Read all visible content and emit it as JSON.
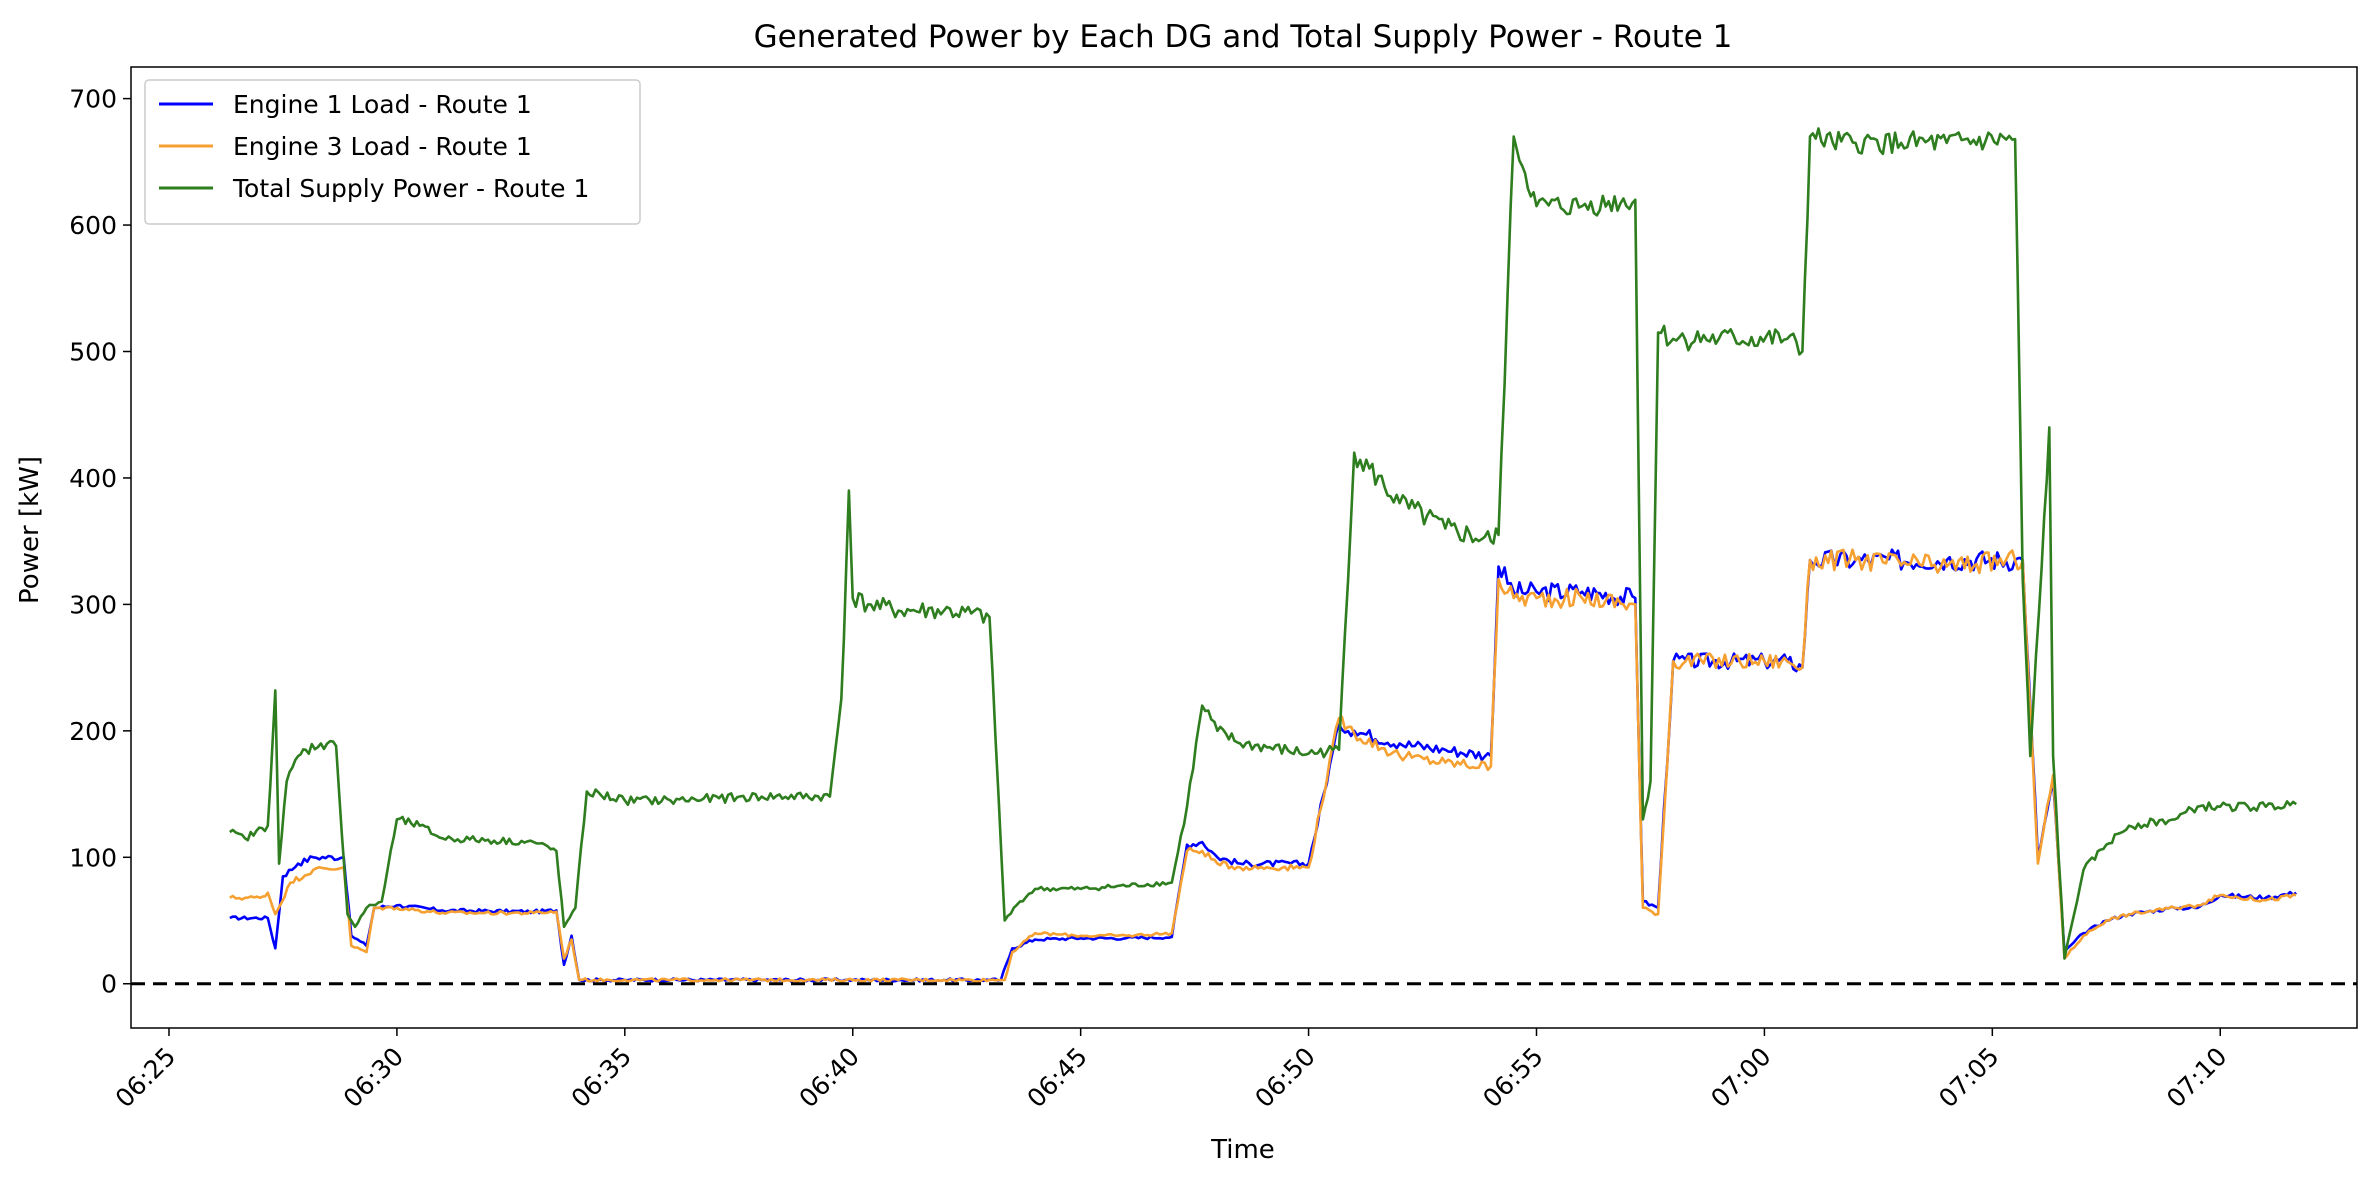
{
  "chart_data": {
    "type": "line",
    "title": "Generated Power by Each DG and Total Supply Power - Route 1",
    "xlabel": "Time",
    "ylabel": "Power [kW]",
    "x_ticks": [
      "06:25",
      "06:30",
      "06:35",
      "06:40",
      "06:45",
      "06:50",
      "06:55",
      "07:00",
      "07:05",
      "07:10"
    ],
    "y_ticks": [
      "0",
      "100",
      "200",
      "300",
      "400",
      "500",
      "600",
      "700"
    ],
    "xlim": [
      "06:24:10",
      "07:13:00"
    ],
    "ylim": [
      -35,
      725
    ],
    "grid": false,
    "legend_position": "top-left",
    "reference_line": {
      "y": 0,
      "style": "dashed",
      "color": "#000000"
    },
    "series": [
      {
        "name": "Engine 1 Load - Route 1",
        "color": "#0000ff",
        "x": [
          "06:26:20",
          "06:27:10",
          "06:27:20",
          "06:27:30",
          "06:27:50",
          "06:28:10",
          "06:28:50",
          "06:29:00",
          "06:29:20",
          "06:29:30",
          "06:30:00",
          "06:31:00",
          "06:33:00",
          "06:33:30",
          "06:33:40",
          "06:33:50",
          "06:34:00",
          "06:34:30",
          "06:35:00",
          "06:36:00",
          "06:38:00",
          "06:39:30",
          "06:39:50",
          "06:40:00",
          "06:40:20",
          "06:41:00",
          "06:42:00",
          "06:43:00",
          "06:43:15",
          "06:43:30",
          "06:44:00",
          "06:45:00",
          "06:46:00",
          "06:47:00",
          "06:47:20",
          "06:47:40",
          "06:48:00",
          "06:48:30",
          "06:50:00",
          "06:50:40",
          "06:51:00",
          "06:52:00",
          "06:53:00",
          "06:54:00",
          "06:54:10",
          "06:54:30",
          "06:55:00",
          "06:56:00",
          "06:57:10",
          "06:57:20",
          "06:57:40",
          "06:58:00",
          "07:00:00",
          "07:00:30",
          "07:00:50",
          "07:01:00",
          "07:02:00",
          "07:04:00",
          "07:05:30",
          "07:05:40",
          "07:06:00",
          "07:06:20",
          "07:06:35",
          "07:07:00",
          "07:07:30",
          "07:08:00",
          "07:09:00",
          "07:09:30",
          "07:10:00",
          "07:11:00",
          "07:11:40"
        ],
        "y": [
          52,
          52,
          28,
          85,
          95,
          100,
          100,
          38,
          30,
          60,
          62,
          58,
          57,
          58,
          15,
          38,
          3,
          3,
          3,
          3,
          3,
          3,
          3,
          3,
          3,
          3,
          3,
          3,
          3,
          28,
          35,
          36,
          36,
          37,
          110,
          112,
          100,
          95,
          95,
          205,
          200,
          190,
          185,
          180,
          330,
          310,
          310,
          310,
          305,
          65,
          60,
          255,
          255,
          255,
          250,
          335,
          335,
          335,
          335,
          335,
          100,
          160,
          25,
          40,
          50,
          55,
          60,
          60,
          70,
          68,
          72
        ]
      },
      {
        "name": "Engine 3 Load - Route 1",
        "color": "#f5a030",
        "x": [
          "06:26:20",
          "06:27:00",
          "06:27:10",
          "06:27:20",
          "06:27:40",
          "06:28:10",
          "06:28:50",
          "06:29:00",
          "06:29:20",
          "06:29:30",
          "06:30:00",
          "06:31:00",
          "06:33:00",
          "06:33:30",
          "06:33:40",
          "06:33:50",
          "06:34:00",
          "06:35:00",
          "06:36:00",
          "06:37:00",
          "06:38:00",
          "06:39:00",
          "06:40:00",
          "06:41:00",
          "06:42:00",
          "06:43:00",
          "06:43:20",
          "06:43:30",
          "06:44:00",
          "06:45:00",
          "06:46:00",
          "06:47:00",
          "06:47:20",
          "06:47:40",
          "06:48:00",
          "06:48:30",
          "06:50:00",
          "06:50:40",
          "06:51:00",
          "06:52:00",
          "06:53:00",
          "06:54:00",
          "06:54:10",
          "06:54:30",
          "06:55:00",
          "06:56:00",
          "06:57:10",
          "06:57:20",
          "06:57:40",
          "06:58:00",
          "07:00:00",
          "07:00:30",
          "07:00:50",
          "07:01:00",
          "07:02:00",
          "07:04:00",
          "07:05:30",
          "07:05:40",
          "07:06:00",
          "07:06:20",
          "07:06:35",
          "07:07:00",
          "07:07:30",
          "07:08:00",
          "07:09:00",
          "07:09:30",
          "07:10:00",
          "07:11:00",
          "07:11:40"
        ],
        "y": [
          68,
          68,
          72,
          55,
          80,
          90,
          92,
          30,
          25,
          60,
          60,
          56,
          56,
          57,
          20,
          35,
          3,
          3,
          3,
          3,
          3,
          3,
          3,
          3,
          3,
          3,
          3,
          25,
          40,
          38,
          38,
          40,
          105,
          105,
          95,
          92,
          92,
          210,
          198,
          180,
          175,
          172,
          320,
          305,
          305,
          305,
          300,
          60,
          55,
          255,
          255,
          255,
          250,
          335,
          335,
          330,
          335,
          335,
          95,
          165,
          20,
          38,
          50,
          55,
          60,
          62,
          70,
          66,
          70
        ]
      },
      {
        "name": "Total Supply Power - Route 1",
        "color": "#2e7d1e",
        "x": [
          "06:26:20",
          "06:26:40",
          "06:27:10",
          "06:27:20",
          "06:27:25",
          "06:27:35",
          "06:27:50",
          "06:28:00",
          "06:28:20",
          "06:28:40",
          "06:28:55",
          "06:29:05",
          "06:29:20",
          "06:29:40",
          "06:30:00",
          "06:30:30",
          "06:31:00",
          "06:33:00",
          "06:33:30",
          "06:33:40",
          "06:33:55",
          "06:34:10",
          "06:35:00",
          "06:36:00",
          "06:38:00",
          "06:39:30",
          "06:39:45",
          "06:39:55",
          "06:40:00",
          "06:40:20",
          "06:41:00",
          "06:42:00",
          "06:43:00",
          "06:43:20",
          "06:43:40",
          "06:44:00",
          "06:45:00",
          "06:47:00",
          "06:47:20",
          "06:47:40",
          "06:48:00",
          "06:48:30",
          "06:50:00",
          "06:50:40",
          "06:51:00",
          "06:52:00",
          "06:53:00",
          "06:54:00",
          "06:54:10",
          "06:54:30",
          "06:55:00",
          "06:56:00",
          "06:57:10",
          "06:57:20",
          "06:57:30",
          "06:57:40",
          "06:58:00",
          "06:59:00",
          "07:00:30",
          "07:00:50",
          "07:01:00",
          "07:01:30",
          "07:02:00",
          "07:03:00",
          "07:04:00",
          "07:05:30",
          "07:05:40",
          "07:05:50",
          "07:06:05",
          "07:06:15",
          "07:06:20",
          "07:06:35",
          "07:07:00",
          "07:07:30",
          "07:08:00",
          "07:09:00",
          "07:09:30",
          "07:10:00",
          "07:11:00",
          "07:11:40"
        ],
        "y": [
          120,
          115,
          125,
          232,
          95,
          160,
          180,
          185,
          190,
          188,
          55,
          45,
          60,
          65,
          130,
          125,
          115,
          112,
          105,
          45,
          60,
          152,
          145,
          145,
          148,
          148,
          225,
          390,
          305,
          300,
          295,
          295,
          290,
          50,
          65,
          75,
          75,
          80,
          140,
          220,
          200,
          190,
          182,
          185,
          420,
          380,
          360,
          350,
          355,
          670,
          615,
          615,
          620,
          130,
          160,
          515,
          510,
          510,
          510,
          500,
          670,
          665,
          665,
          665,
          665,
          668,
          320,
          180,
          330,
          440,
          180,
          20,
          90,
          110,
          125,
          130,
          140,
          140,
          140,
          142
        ]
      }
    ]
  }
}
